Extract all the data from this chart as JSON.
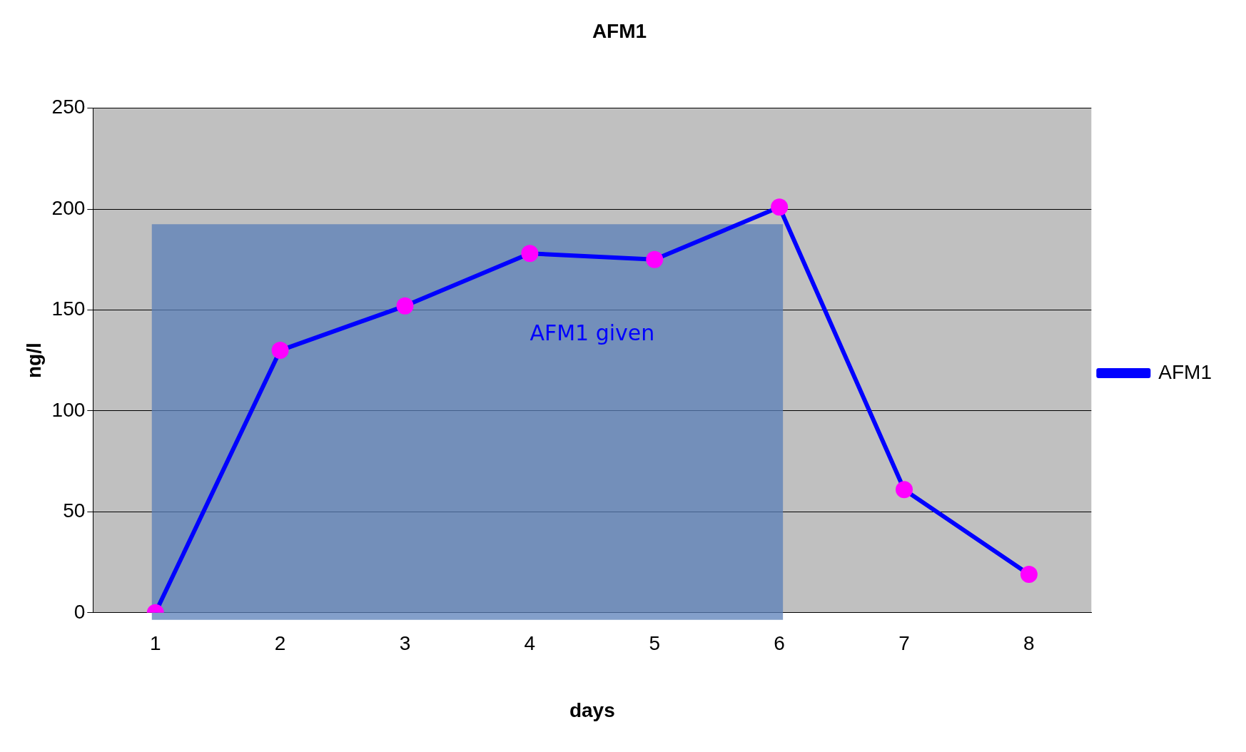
{
  "chart_data": {
    "type": "line",
    "title": "AFM1",
    "xlabel": "days",
    "ylabel": "ng/l",
    "categories": [
      "1",
      "2",
      "3",
      "4",
      "5",
      "6",
      "7",
      "8"
    ],
    "series": [
      {
        "name": "AFM1",
        "color": "#0000ff",
        "values": [
          0,
          130,
          152,
          178,
          175,
          201,
          61,
          19
        ]
      }
    ],
    "ylim": [
      0,
      250
    ],
    "yticks": [
      0,
      50,
      100,
      150,
      200,
      250
    ],
    "grid": "y",
    "legend": "right",
    "marker": "circle",
    "line_style": "solid",
    "bands": [
      {
        "axis": "x",
        "from": "1",
        "to": "6",
        "label": "AFM1 given",
        "color": "#5a7fb8"
      }
    ]
  }
}
